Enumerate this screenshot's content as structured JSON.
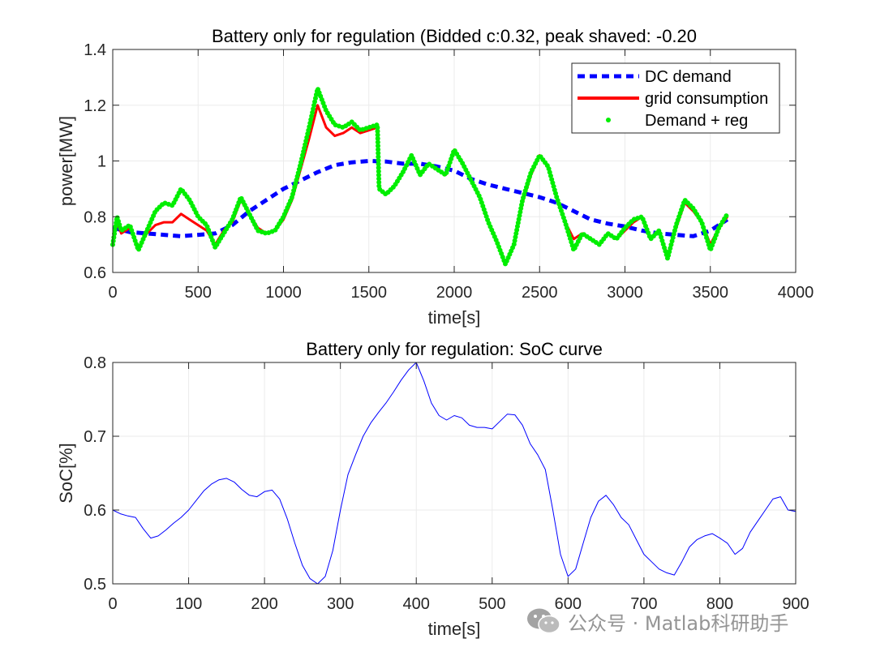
{
  "chart_data": [
    {
      "type": "line",
      "title": "Battery only for regulation (Bidded c:0.32, peak shaved: -0.20",
      "xlabel": "time[s]",
      "ylabel": "power[MW]",
      "xlim": [
        0,
        4000
      ],
      "ylim": [
        0.6,
        1.4
      ],
      "xticks": [
        0,
        500,
        1000,
        1500,
        2000,
        2500,
        3000,
        3500,
        4000
      ],
      "yticks": [
        0.6,
        0.8,
        1,
        1.2,
        1.4
      ],
      "xtick_labels": [
        "0",
        "500",
        "1000",
        "1500",
        "2000",
        "2500",
        "3000",
        "3500",
        "4000"
      ],
      "ytick_labels": [
        "0.6",
        "0.8",
        "1",
        "1.2",
        "1.4"
      ],
      "grid": true,
      "legend_position": "top-right",
      "series": [
        {
          "name": "DC demand",
          "style": "dashed",
          "color": "#0000ff",
          "x": [
            0,
            100,
            200,
            300,
            400,
            500,
            600,
            700,
            800,
            900,
            1000,
            1100,
            1200,
            1300,
            1400,
            1500,
            1600,
            1700,
            1800,
            1900,
            2000,
            2100,
            2200,
            2300,
            2400,
            2500,
            2600,
            2700,
            2800,
            2900,
            3000,
            3100,
            3200,
            3300,
            3400,
            3500,
            3600
          ],
          "y": [
            0.76,
            0.745,
            0.74,
            0.735,
            0.73,
            0.735,
            0.74,
            0.77,
            0.82,
            0.86,
            0.9,
            0.93,
            0.96,
            0.985,
            0.995,
            1.0,
            0.998,
            0.99,
            0.99,
            0.98,
            0.965,
            0.935,
            0.915,
            0.9,
            0.885,
            0.87,
            0.85,
            0.82,
            0.79,
            0.775,
            0.765,
            0.75,
            0.74,
            0.735,
            0.73,
            0.75,
            0.79
          ]
        },
        {
          "name": "grid consumption",
          "style": "solid",
          "color": "#ff0000",
          "x": [
            0,
            25,
            50,
            100,
            150,
            200,
            250,
            300,
            350,
            400,
            450,
            500,
            550,
            600,
            650,
            700,
            750,
            800,
            850,
            900,
            950,
            1000,
            1050,
            1100,
            1150,
            1200,
            1250,
            1300,
            1350,
            1400,
            1450,
            1500,
            1550,
            1560,
            1600,
            1650,
            1700,
            1750,
            1800,
            1850,
            1900,
            1950,
            2000,
            2050,
            2100,
            2150,
            2200,
            2250,
            2300,
            2350,
            2400,
            2450,
            2500,
            2550,
            2600,
            2650,
            2700,
            2750,
            2800,
            2850,
            2900,
            2950,
            3000,
            3050,
            3100,
            3150,
            3200,
            3250,
            3300,
            3350,
            3400,
            3450,
            3500,
            3550,
            3600
          ],
          "y": [
            0.7,
            0.78,
            0.74,
            0.76,
            0.69,
            0.74,
            0.77,
            0.78,
            0.78,
            0.81,
            0.79,
            0.77,
            0.75,
            0.7,
            0.75,
            0.78,
            0.86,
            0.81,
            0.76,
            0.74,
            0.75,
            0.79,
            0.86,
            0.97,
            1.08,
            1.2,
            1.12,
            1.09,
            1.1,
            1.12,
            1.1,
            1.11,
            1.12,
            0.9,
            0.88,
            0.91,
            0.96,
            1.02,
            0.95,
            0.99,
            0.97,
            0.95,
            1.04,
            0.99,
            0.93,
            0.87,
            0.78,
            0.71,
            0.63,
            0.7,
            0.85,
            0.95,
            1.02,
            0.98,
            0.87,
            0.78,
            0.72,
            0.74,
            0.72,
            0.7,
            0.74,
            0.72,
            0.75,
            0.78,
            0.8,
            0.72,
            0.75,
            0.66,
            0.76,
            0.85,
            0.82,
            0.78,
            0.7,
            0.76,
            0.8
          ]
        },
        {
          "name": "Demand + reg",
          "style": "dots",
          "color": "#00ee00",
          "x": [
            0,
            25,
            50,
            100,
            150,
            200,
            250,
            300,
            350,
            400,
            450,
            500,
            550,
            600,
            650,
            700,
            750,
            800,
            850,
            900,
            950,
            1000,
            1050,
            1100,
            1150,
            1200,
            1250,
            1300,
            1350,
            1400,
            1450,
            1500,
            1550,
            1560,
            1600,
            1650,
            1700,
            1750,
            1800,
            1850,
            1900,
            1950,
            2000,
            2050,
            2100,
            2150,
            2200,
            2250,
            2300,
            2350,
            2400,
            2450,
            2500,
            2550,
            2600,
            2650,
            2700,
            2750,
            2800,
            2850,
            2900,
            2950,
            3000,
            3050,
            3100,
            3150,
            3200,
            3250,
            3300,
            3350,
            3400,
            3450,
            3500,
            3550,
            3600
          ],
          "y": [
            0.7,
            0.8,
            0.75,
            0.77,
            0.68,
            0.75,
            0.82,
            0.85,
            0.84,
            0.9,
            0.86,
            0.8,
            0.77,
            0.69,
            0.74,
            0.79,
            0.87,
            0.81,
            0.75,
            0.74,
            0.75,
            0.8,
            0.87,
            0.99,
            1.12,
            1.26,
            1.18,
            1.13,
            1.12,
            1.14,
            1.11,
            1.12,
            1.13,
            0.9,
            0.88,
            0.91,
            0.96,
            1.02,
            0.95,
            0.99,
            0.97,
            0.95,
            1.04,
            0.99,
            0.93,
            0.87,
            0.78,
            0.71,
            0.63,
            0.7,
            0.86,
            0.96,
            1.02,
            0.98,
            0.87,
            0.78,
            0.68,
            0.74,
            0.72,
            0.7,
            0.74,
            0.72,
            0.76,
            0.79,
            0.8,
            0.72,
            0.75,
            0.65,
            0.77,
            0.86,
            0.83,
            0.78,
            0.68,
            0.76,
            0.81
          ]
        }
      ]
    },
    {
      "type": "line",
      "title": "Battery only for regulation: SoC curve",
      "xlabel": "time[s]",
      "ylabel": "SoC[%]",
      "xlim": [
        0,
        900
      ],
      "ylim": [
        0.5,
        0.8
      ],
      "xticks": [
        0,
        100,
        200,
        300,
        400,
        500,
        600,
        700,
        800,
        900
      ],
      "yticks": [
        0.5,
        0.6,
        0.7,
        0.8
      ],
      "xtick_labels": [
        "0",
        "100",
        "200",
        "300",
        "400",
        "500",
        "600",
        "700",
        "800",
        "900"
      ],
      "ytick_labels": [
        "0.5",
        "0.6",
        "0.7",
        "0.8"
      ],
      "grid": true,
      "series": [
        {
          "name": "SoC",
          "color": "#0000ff",
          "x": [
            0,
            10,
            20,
            30,
            40,
            50,
            60,
            70,
            80,
            90,
            100,
            110,
            120,
            130,
            140,
            150,
            160,
            170,
            180,
            190,
            200,
            210,
            220,
            230,
            240,
            250,
            260,
            270,
            280,
            290,
            300,
            310,
            320,
            330,
            340,
            350,
            360,
            370,
            380,
            390,
            400,
            410,
            420,
            430,
            440,
            450,
            460,
            470,
            480,
            490,
            500,
            510,
            520,
            530,
            540,
            550,
            560,
            570,
            580,
            590,
            600,
            610,
            620,
            630,
            640,
            650,
            660,
            670,
            680,
            690,
            700,
            710,
            720,
            730,
            740,
            750,
            760,
            770,
            780,
            790,
            800,
            810,
            820,
            830,
            840,
            850,
            860,
            870,
            880,
            890,
            900
          ],
          "y": [
            0.6,
            0.595,
            0.592,
            0.59,
            0.575,
            0.562,
            0.565,
            0.573,
            0.582,
            0.59,
            0.6,
            0.613,
            0.626,
            0.635,
            0.641,
            0.643,
            0.638,
            0.628,
            0.62,
            0.618,
            0.625,
            0.627,
            0.615,
            0.588,
            0.555,
            0.525,
            0.507,
            0.5,
            0.51,
            0.545,
            0.6,
            0.648,
            0.675,
            0.7,
            0.718,
            0.732,
            0.745,
            0.76,
            0.776,
            0.79,
            0.8,
            0.775,
            0.745,
            0.728,
            0.722,
            0.728,
            0.725,
            0.715,
            0.712,
            0.712,
            0.71,
            0.72,
            0.73,
            0.729,
            0.715,
            0.69,
            0.675,
            0.655,
            0.6,
            0.54,
            0.51,
            0.52,
            0.555,
            0.59,
            0.612,
            0.62,
            0.607,
            0.59,
            0.58,
            0.56,
            0.54,
            0.53,
            0.52,
            0.515,
            0.512,
            0.53,
            0.55,
            0.56,
            0.565,
            0.568,
            0.562,
            0.555,
            0.54,
            0.548,
            0.57,
            0.585,
            0.6,
            0.615,
            0.618,
            0.6,
            0.598
          ]
        }
      ]
    }
  ],
  "watermark": {
    "text": "公众号 · Matlab科研助手",
    "icon": "wechat-icon"
  }
}
